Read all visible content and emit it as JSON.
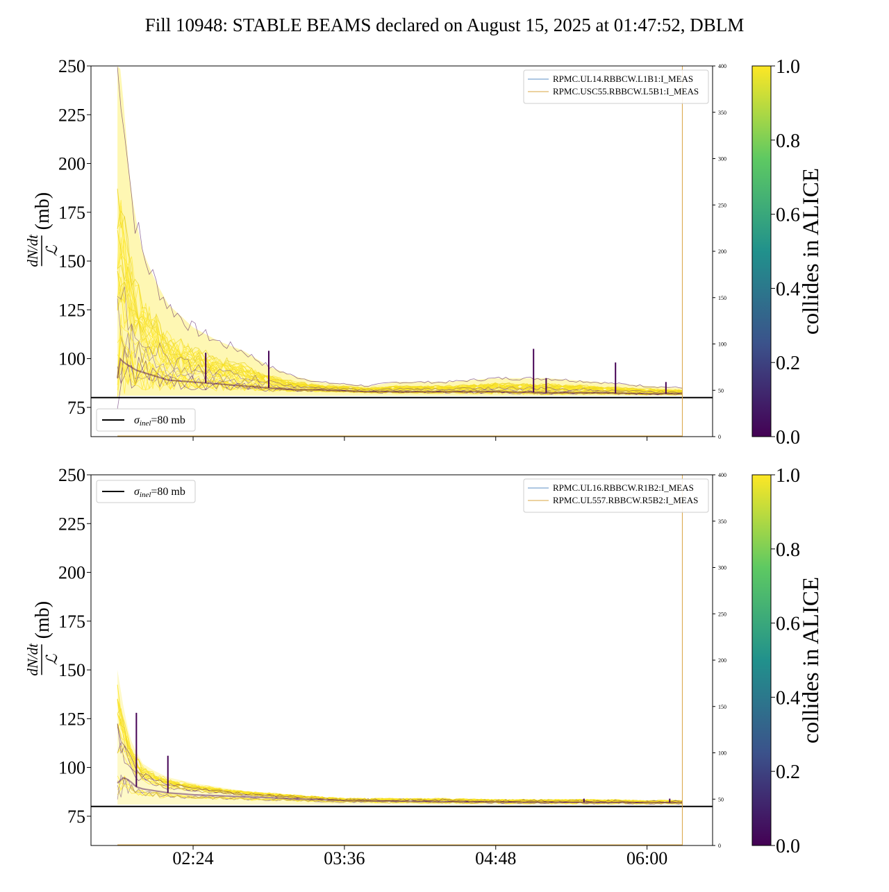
{
  "chart_data": {
    "type": "line",
    "title": "Fill 10948: STABLE BEAMS declared on August 15, 2025 at 01:47:52, DBLM",
    "ylabel_num": "dN/dt",
    "ylabel_den": "ℒ",
    "ylabel_unit": "(mb)",
    "xticks": [
      "02:24",
      "03:36",
      "04:48",
      "06:00"
    ],
    "xtick_hours": [
      2.4,
      3.6,
      4.8,
      6.0
    ],
    "xlim_hours": [
      1.59,
      6.52
    ],
    "yticks": [
      75,
      100,
      125,
      150,
      175,
      200,
      225,
      250
    ],
    "ylim": [
      60,
      250
    ],
    "right_yticks": [
      0,
      50,
      100,
      150,
      200,
      250,
      300,
      350,
      400
    ],
    "right_ylim": [
      0,
      400
    ],
    "sigma_inel_mb": 80,
    "sigma_legend": {
      "sym": "σ",
      "sub": "inel",
      "text": "=80 mb"
    },
    "colorbar": {
      "label": "collides in ALICE",
      "ticks": [
        "0.0",
        "0.2",
        "0.4",
        "0.6",
        "0.8",
        "1.0"
      ],
      "range": [
        0,
        1
      ],
      "colors": [
        "#440154",
        "#3b528b",
        "#21918c",
        "#5ec962",
        "#fde725"
      ]
    },
    "stable_beams_end_hours": 6.28,
    "panels": [
      {
        "beam": "B1",
        "legend": [
          "RPMC.UL14.RBBCW.L1B1:I_MEAS",
          "RPMC.USC55.RBBCW.L5B1:I_MEAS"
        ],
        "legend_colors": [
          "#5b8fc4",
          "#d9a441"
        ],
        "sigma_legend_pos": "lower-left",
        "envelope_hours": [
          1.8,
          1.82,
          1.85,
          1.9,
          1.95,
          2.0,
          2.1,
          2.2,
          2.4,
          2.6,
          2.8,
          3.0,
          3.2,
          3.4,
          3.6,
          3.8,
          4.0,
          4.4,
          4.8,
          5.2,
          5.6,
          6.0,
          6.28
        ],
        "envelope_upper": [
          250,
          250,
          230,
          190,
          170,
          155,
          140,
          128,
          116,
          109,
          104,
          96,
          91,
          88,
          87,
          86,
          88,
          88,
          90,
          90,
          88,
          86,
          85
        ],
        "envelope_core": [
          90,
          100,
          98,
          96,
          94,
          93,
          91,
          89,
          88,
          87,
          86,
          85,
          84,
          84,
          83.5,
          83,
          83,
          83,
          83,
          82.5,
          82.5,
          82,
          82
        ],
        "envelope_lower": [
          81,
          81,
          81,
          81,
          81,
          81,
          81,
          81,
          81,
          81,
          81,
          81,
          81,
          81,
          81,
          81,
          81,
          81,
          81,
          81,
          81,
          81,
          81
        ],
        "spikes": [
          {
            "t": 2.5,
            "y": 103
          },
          {
            "t": 3.0,
            "y": 104
          },
          {
            "t": 5.1,
            "y": 105
          },
          {
            "t": 5.2,
            "y": 90
          },
          {
            "t": 5.75,
            "y": 98
          },
          {
            "t": 6.15,
            "y": 88
          }
        ]
      },
      {
        "beam": "B2",
        "legend": [
          "RPMC.UL16.RBBCW.R1B2:I_MEAS",
          "RPMC.UL557.RBBCW.R5B2:I_MEAS"
        ],
        "legend_colors": [
          "#5b8fc4",
          "#d9a441"
        ],
        "sigma_legend_pos": "upper-left",
        "envelope_hours": [
          1.8,
          1.85,
          1.9,
          1.95,
          2.0,
          2.1,
          2.2,
          2.4,
          2.6,
          2.8,
          3.0,
          3.2,
          3.4,
          3.6,
          4.0,
          4.4,
          4.8,
          5.2,
          5.6,
          6.0,
          6.28
        ],
        "envelope_upper": [
          150,
          130,
          115,
          108,
          102,
          98,
          95,
          92,
          90,
          88,
          87,
          86,
          85,
          84,
          84,
          84,
          83.5,
          83.5,
          83.5,
          83,
          83
        ],
        "envelope_core": [
          92,
          95,
          93,
          90,
          89,
          88,
          87,
          86,
          85.5,
          85,
          84.5,
          84,
          83.5,
          83,
          82.8,
          82.5,
          82.3,
          82.2,
          82.1,
          82,
          82
        ],
        "envelope_lower": [
          81,
          81,
          81,
          81,
          81,
          81,
          81,
          81,
          81,
          81,
          81,
          81,
          81,
          81,
          81,
          81,
          81,
          81,
          81,
          81,
          81
        ],
        "spikes": [
          {
            "t": 1.95,
            "y": 128
          },
          {
            "t": 2.2,
            "y": 106
          },
          {
            "t": 5.5,
            "y": 84
          },
          {
            "t": 6.18,
            "y": 84
          }
        ]
      }
    ]
  }
}
